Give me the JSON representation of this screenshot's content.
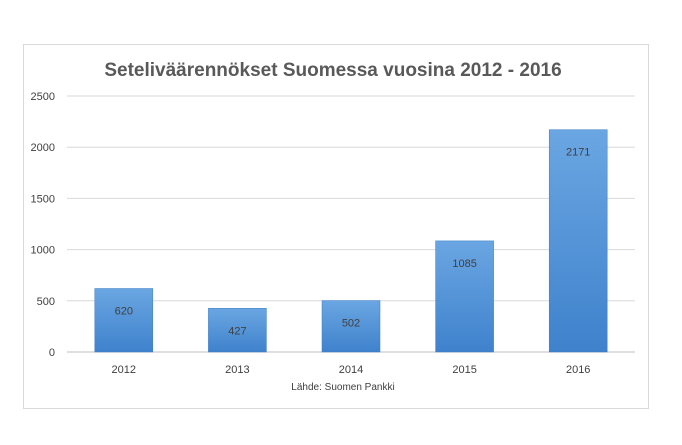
{
  "chart_data": {
    "type": "bar",
    "title": "Seteliväärennökset Suomessa vuosina 2012 - 2016",
    "categories": [
      "2012",
      "2013",
      "2014",
      "2015",
      "2016"
    ],
    "values": [
      620,
      427,
      502,
      1085,
      2171
    ],
    "data_labels": [
      "620",
      "427",
      "502",
      "1085",
      "2171"
    ],
    "yticks": [
      "0",
      "500",
      "1000",
      "1500",
      "2000",
      "2500"
    ],
    "ylim": [
      0,
      2500
    ],
    "xlabel": "",
    "ylabel": "",
    "source": "Lähde: Suomen Pankki",
    "grid": true,
    "legend": "none",
    "bar_color": "#4f8fd3"
  }
}
